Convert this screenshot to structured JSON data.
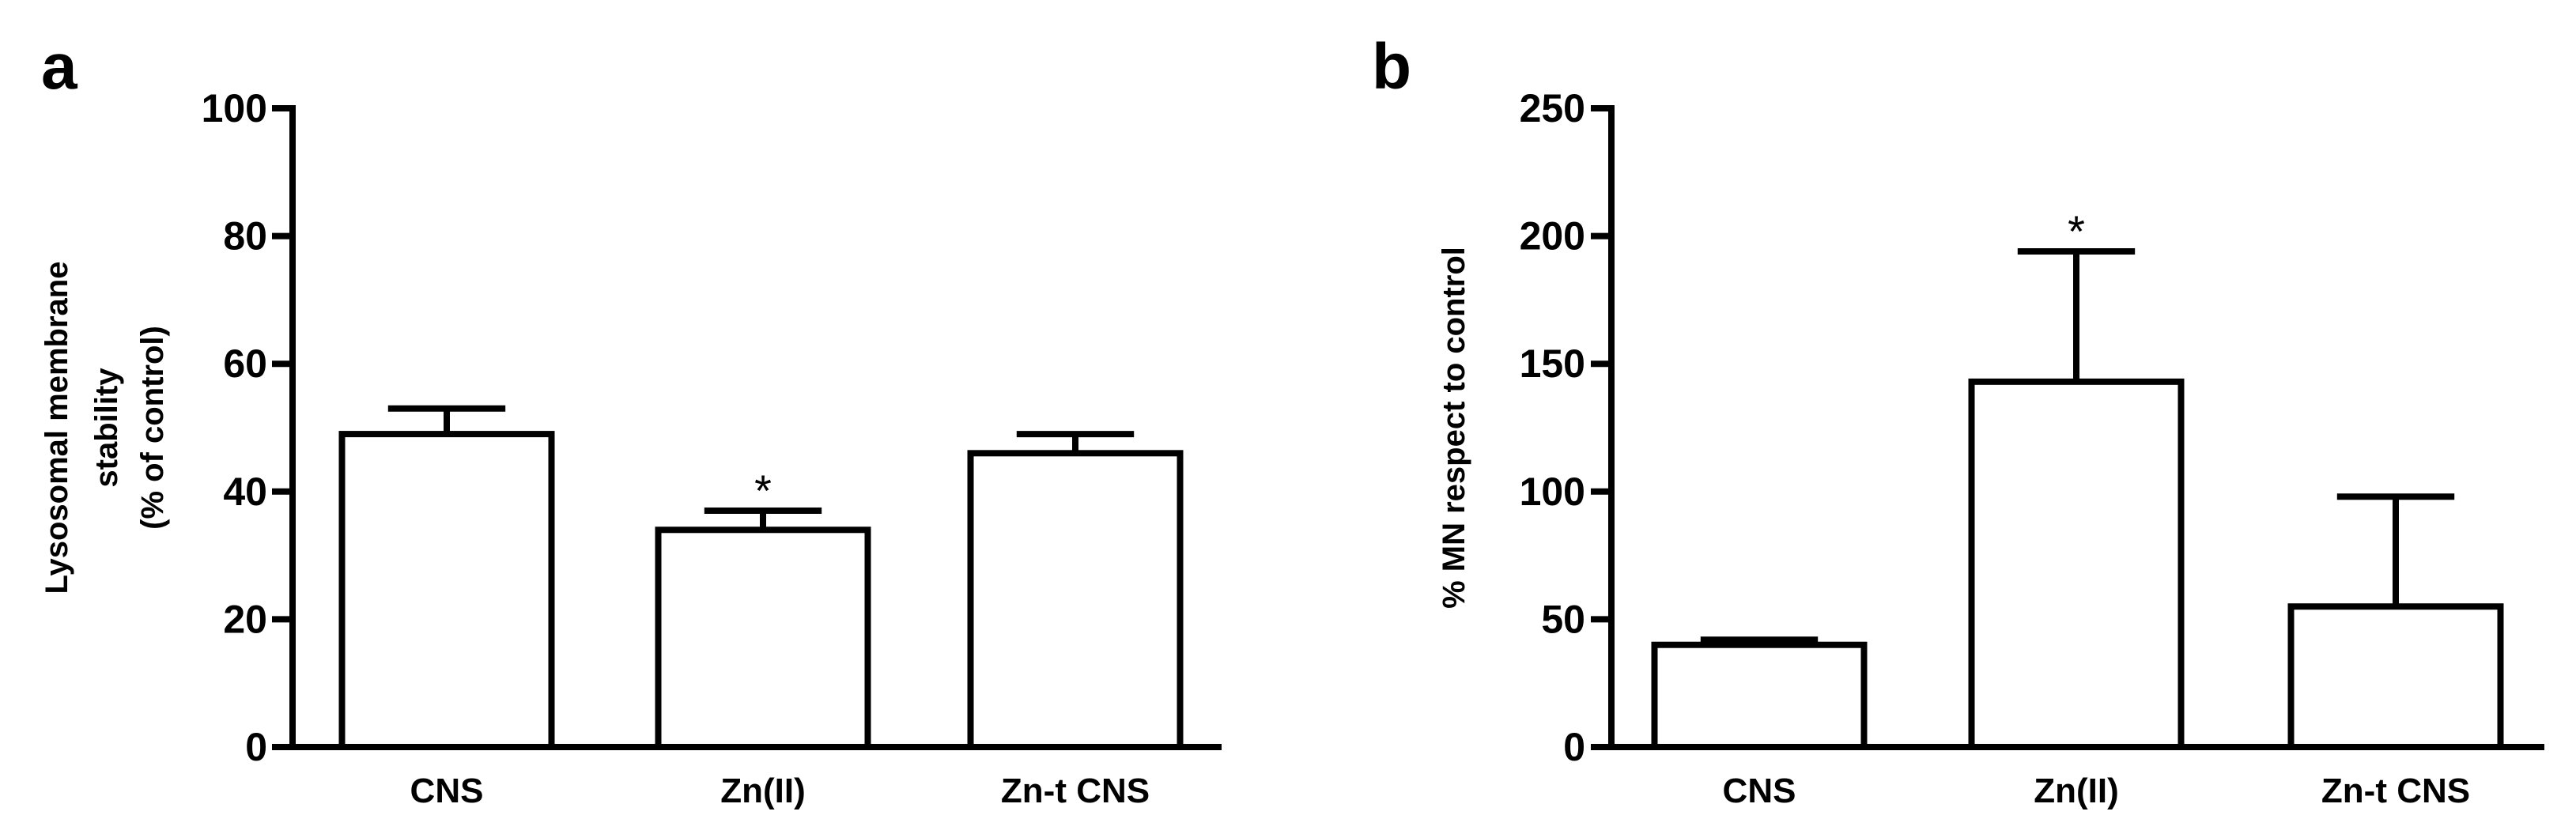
{
  "chart_data": [
    {
      "type": "bar",
      "panel_label": "a",
      "categories": [
        "CNS",
        "Zn(II)",
        "Zn-t CNS"
      ],
      "values": [
        49,
        34,
        46
      ],
      "errors": [
        4,
        3,
        3
      ],
      "annotations": [
        "",
        "*",
        ""
      ],
      "ylabel_lines": [
        "Lysosomal membrane",
        "stability",
        "(% of control)"
      ],
      "xlabel": "",
      "ylim": [
        0,
        100
      ],
      "yticks": [
        0,
        20,
        40,
        60,
        80,
        100
      ],
      "ytick_labels": [
        "0",
        "20",
        "40",
        "60",
        "80",
        "100"
      ],
      "grid": false,
      "bar_fill": "#ffffff",
      "stroke_color": "#000000"
    },
    {
      "type": "bar",
      "panel_label": "b",
      "categories": [
        "CNS",
        "Zn(II)",
        "Zn-t CNS"
      ],
      "values": [
        40,
        143,
        55
      ],
      "errors": [
        2,
        51,
        43
      ],
      "annotations": [
        "",
        "*",
        ""
      ],
      "ylabel_lines": [
        "% MN respect to control"
      ],
      "xlabel": "",
      "ylim": [
        0,
        250
      ],
      "yticks": [
        0,
        50,
        100,
        150,
        200,
        250
      ],
      "ytick_labels": [
        "0",
        "50",
        "100",
        "150",
        "200",
        "250"
      ],
      "grid": false,
      "bar_fill": "#ffffff",
      "stroke_color": "#000000"
    }
  ]
}
